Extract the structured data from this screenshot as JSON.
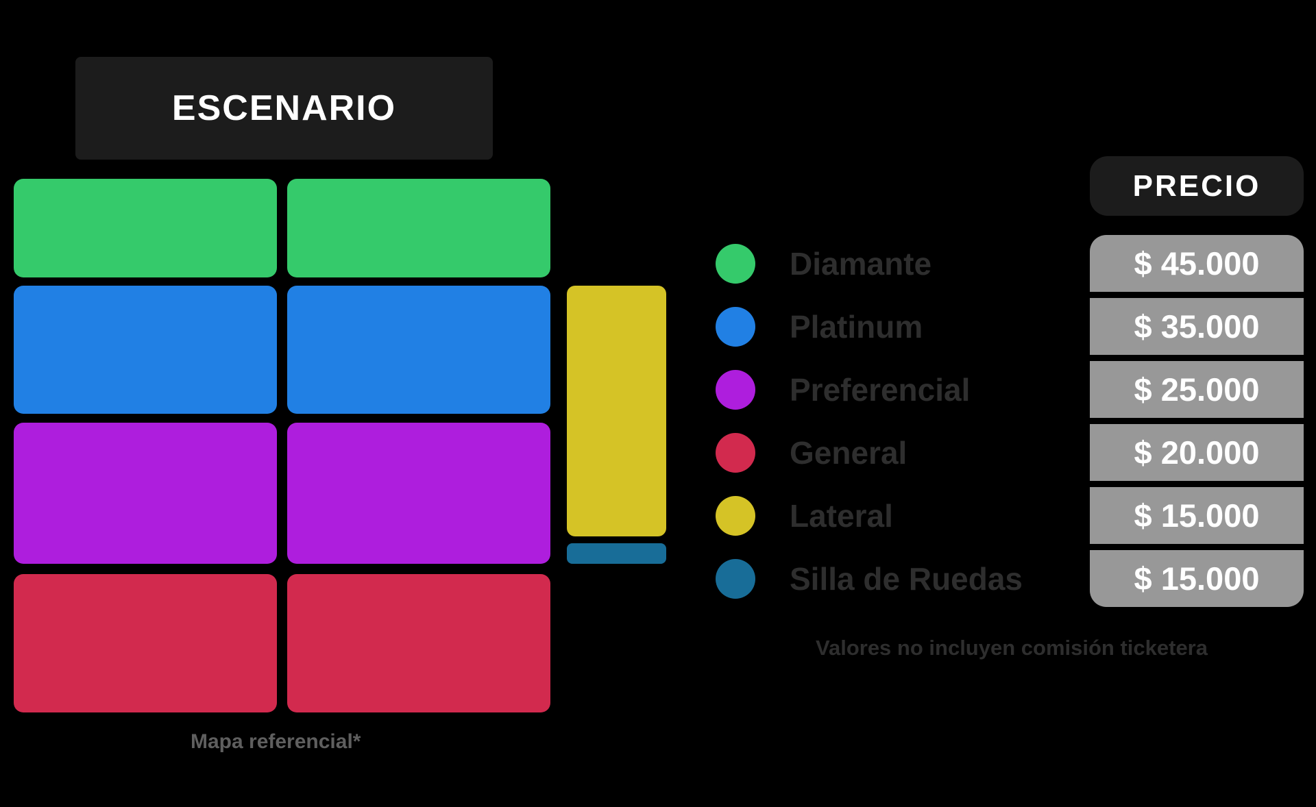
{
  "stage": {
    "label": "ESCENARIO"
  },
  "legend": {
    "price_header": "PRECIO",
    "sections": [
      {
        "name": "Diamante",
        "price": "$ 45.000",
        "color": "#35ca6b"
      },
      {
        "name": "Platinum",
        "price": "$ 35.000",
        "color": "#2180e4"
      },
      {
        "name": "Preferencial",
        "price": "$ 25.000",
        "color": "#ae1edd"
      },
      {
        "name": "General",
        "price": "$ 20.000",
        "color": "#d22a4e"
      },
      {
        "name": "Lateral",
        "price": "$ 15.000",
        "color": "#d5c326"
      },
      {
        "name": "Silla de Ruedas",
        "price": "$ 15.000",
        "color": "#186d98"
      }
    ],
    "note": "Valores no incluyen comisión ticketera"
  },
  "map": {
    "disclaimer": "Mapa referencial*"
  },
  "colors": {
    "background": "#000000",
    "panel_dark": "#1c1c1c",
    "price_row_bg": "#989898",
    "price_text": "#ffffff",
    "legend_text": "#2e2e2e",
    "disclaimer_text": "#5f5f5f"
  }
}
